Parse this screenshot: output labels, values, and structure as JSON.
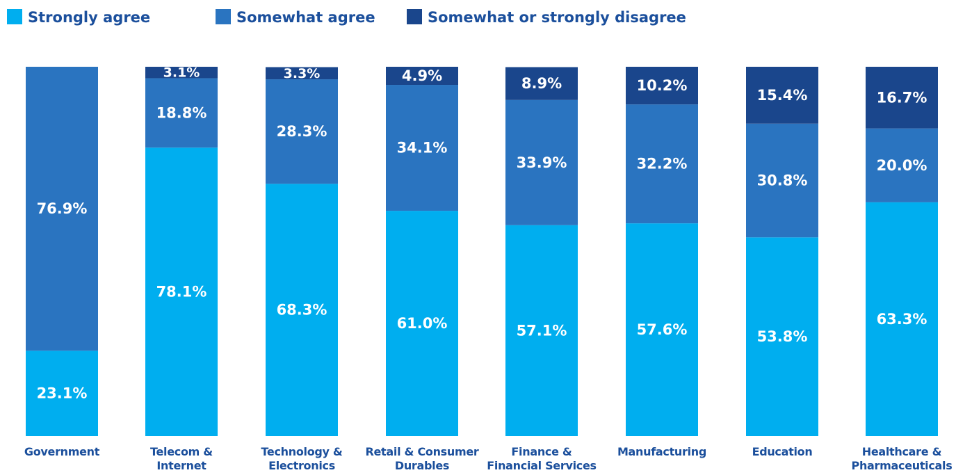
{
  "chart_data": {
    "type": "stacked_bar",
    "categories": [
      "Government",
      "Telecom & Internet",
      "Technology & Electronics",
      "Retail & Consumer Durables",
      "Finance & Financial Services",
      "Manufacturing",
      "Education",
      "Healthcare & Pharmaceuticals"
    ],
    "ylim": [
      0,
      100
    ],
    "legend": "top-left",
    "series": [
      {
        "name": "Strongly agree",
        "color": "#00aeef",
        "values": [
          23.1,
          78.1,
          68.3,
          61.0,
          57.1,
          57.6,
          53.8,
          63.3
        ],
        "value_labels": [
          "23.1%",
          "78.1%",
          "68.3%",
          "61.0%",
          "57.1%",
          "57.6%",
          "53.8%",
          "63.3%"
        ]
      },
      {
        "name": "Somewhat agree",
        "color": "#2a74c0",
        "values": [
          76.9,
          18.8,
          28.3,
          34.1,
          33.9,
          32.2,
          30.8,
          20.0
        ],
        "value_labels": [
          "76.9%",
          "18.8%",
          "28.3%",
          "34.1%",
          "33.9%",
          "32.2%",
          "30.8%",
          "20.0%"
        ]
      },
      {
        "name": "Somewhat or strongly disagree",
        "color": "#1a468c",
        "values": [
          null,
          3.1,
          3.3,
          4.9,
          8.9,
          10.2,
          15.4,
          16.7
        ],
        "value_labels": [
          null,
          "3.1%",
          "3.3%",
          "4.9%",
          "8.9%",
          "10.2%",
          "15.4%",
          "16.7%"
        ]
      }
    ]
  }
}
